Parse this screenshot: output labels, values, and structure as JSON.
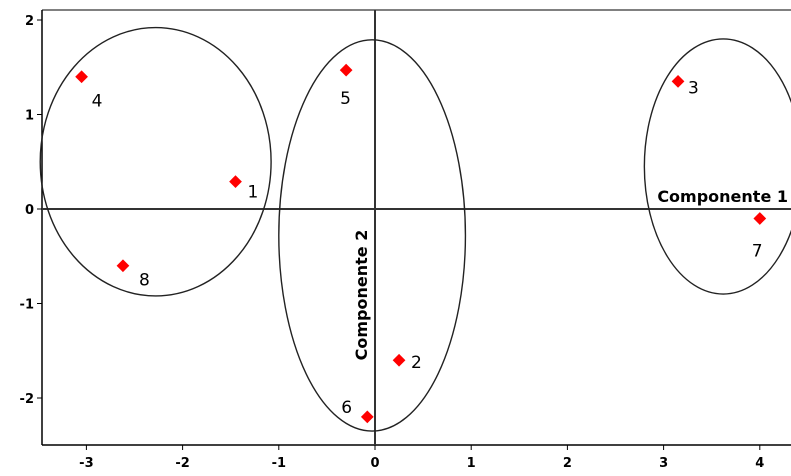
{
  "chart_data": {
    "type": "scatter",
    "title": "",
    "xlabel": "Componente 1",
    "ylabel": "Componente 2",
    "xlim": [
      -3.5,
      4.3
    ],
    "ylim": [
      -2.45,
      2.1
    ],
    "x_ticks": [
      -3,
      -2,
      -1,
      0,
      1,
      2,
      3,
      4
    ],
    "y_ticks": [
      -2,
      -1,
      0,
      1,
      2
    ],
    "grid": false,
    "point_color": "#ff0000",
    "series": [
      {
        "points": [
          {
            "label": "1",
            "x": -1.45,
            "y": 0.29
          },
          {
            "label": "2",
            "x": 0.25,
            "y": -1.6
          },
          {
            "label": "3",
            "x": 3.15,
            "y": 1.35
          },
          {
            "label": "4",
            "x": -3.05,
            "y": 1.4
          },
          {
            "label": "5",
            "x": -0.3,
            "y": 1.47
          },
          {
            "label": "6",
            "x": -0.08,
            "y": -2.2
          },
          {
            "label": "7",
            "x": 4.0,
            "y": -0.1
          },
          {
            "label": "8",
            "x": -2.62,
            "y": -0.6
          }
        ]
      }
    ],
    "clusters": [
      {
        "members": [
          "4",
          "1",
          "8"
        ],
        "cx": -2.28,
        "cy": 0.5,
        "rx": 1.2,
        "ry": 1.42
      },
      {
        "members": [
          "5",
          "2",
          "6"
        ],
        "cx": -0.03,
        "cy": -0.28,
        "rx": 0.97,
        "ry": 2.07
      },
      {
        "members": [
          "3",
          "7"
        ],
        "cx": 3.62,
        "cy": 0.45,
        "rx": 0.82,
        "ry": 1.35
      }
    ]
  }
}
